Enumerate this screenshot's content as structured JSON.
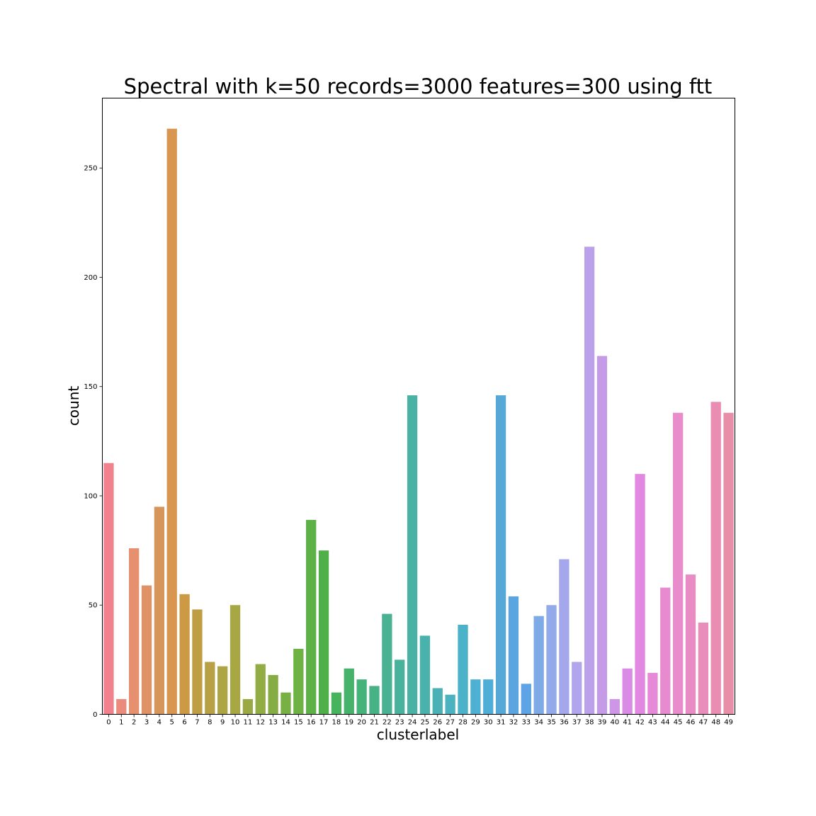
{
  "chart_data": {
    "type": "bar",
    "title": "Spectral with k=50 records=3000 features=300 using ftt",
    "xlabel": "clusterlabel",
    "ylabel": "count",
    "ylim": [
      0,
      282
    ],
    "yticks": [
      0,
      50,
      100,
      150,
      200,
      250
    ],
    "grid": false,
    "categories": [
      "0",
      "1",
      "2",
      "3",
      "4",
      "5",
      "6",
      "7",
      "8",
      "9",
      "10",
      "11",
      "12",
      "13",
      "14",
      "15",
      "16",
      "17",
      "18",
      "19",
      "20",
      "21",
      "22",
      "23",
      "24",
      "25",
      "26",
      "27",
      "28",
      "29",
      "30",
      "31",
      "32",
      "33",
      "34",
      "35",
      "36",
      "37",
      "38",
      "39",
      "40",
      "41",
      "42",
      "43",
      "44",
      "45",
      "46",
      "47",
      "48",
      "49"
    ],
    "values": [
      115,
      7,
      76,
      59,
      95,
      268,
      55,
      48,
      24,
      22,
      50,
      7,
      23,
      18,
      10,
      30,
      89,
      75,
      10,
      21,
      16,
      13,
      46,
      25,
      146,
      36,
      12,
      9,
      41,
      16,
      16,
      146,
      54,
      14,
      45,
      50,
      71,
      24,
      214,
      164,
      7,
      21,
      110,
      19,
      58,
      138,
      64,
      42,
      143,
      138
    ],
    "colors": [
      "#f0818d",
      "#ea8b7d",
      "#e69070",
      "#df9265",
      "#d6955a",
      "#d99650",
      "#cc9a45",
      "#bf9d44",
      "#b8a044",
      "#ada444",
      "#a7a844",
      "#9aa943",
      "#91ad43",
      "#86ad43",
      "#78b043",
      "#6db243",
      "#5cb147",
      "#4fb049",
      "#47b35d",
      "#46b26c",
      "#46b37b",
      "#47b286",
      "#48b292",
      "#48b29c",
      "#49b2a4",
      "#49b2ad",
      "#4ab1b6",
      "#4bb2c0",
      "#4cb2ca",
      "#4eb1d3",
      "#4faed8",
      "#56a8d6",
      "#5aa5e0",
      "#5ea3e5",
      "#7eaae8",
      "#93aaea",
      "#a4a7ec",
      "#b1a6ed",
      "#bba1ea",
      "#c59be8",
      "#cf95e6",
      "#da8be6",
      "#e288e1",
      "#e689d7",
      "#e88ad0",
      "#e98ccc",
      "#ea8cc4",
      "#e98dbb",
      "#ea8db2",
      "#e98ea9"
    ]
  }
}
